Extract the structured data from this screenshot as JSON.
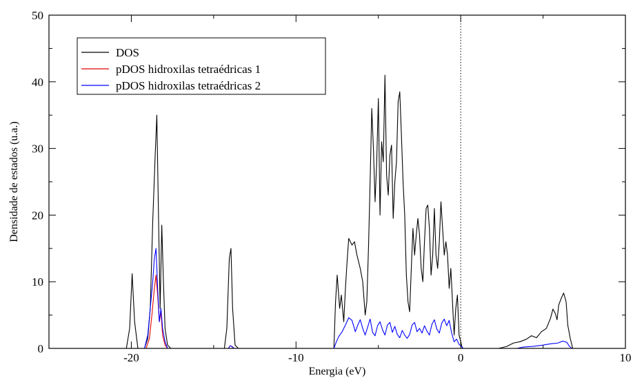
{
  "chart_data": {
    "type": "line",
    "title": "",
    "xlabel": "Energia (eV)",
    "ylabel": "Densidade de estados (u.a.)",
    "xlim": [
      -25,
      10
    ],
    "ylim": [
      0,
      50
    ],
    "xticks": [
      -20,
      -10,
      0,
      10
    ],
    "yticks": [
      0,
      10,
      20,
      30,
      40,
      50
    ],
    "xtick_labels": [
      "-20",
      "-10",
      "0",
      "10"
    ],
    "ytick_labels": [
      "0",
      "10",
      "20",
      "30",
      "40",
      "50"
    ],
    "grid": false,
    "fermi_level": 0,
    "legend_position": "top-left",
    "series": [
      {
        "name": "DOS",
        "color": "#000000",
        "points": [
          [
            -25,
            0
          ],
          [
            -20.3,
            0
          ],
          [
            -20.1,
            3
          ],
          [
            -19.95,
            11.2
          ],
          [
            -19.8,
            4
          ],
          [
            -19.6,
            0
          ],
          [
            -19.2,
            0
          ],
          [
            -19.0,
            1.5
          ],
          [
            -18.85,
            6
          ],
          [
            -18.7,
            19
          ],
          [
            -18.55,
            29
          ],
          [
            -18.45,
            35
          ],
          [
            -18.35,
            20
          ],
          [
            -18.25,
            6
          ],
          [
            -18.15,
            18.5
          ],
          [
            -18.05,
            10
          ],
          [
            -17.95,
            3
          ],
          [
            -17.8,
            0.5
          ],
          [
            -17.6,
            0
          ],
          [
            -14.35,
            0
          ],
          [
            -14.2,
            3
          ],
          [
            -14.05,
            13.5
          ],
          [
            -13.95,
            15
          ],
          [
            -13.85,
            6
          ],
          [
            -13.7,
            0.5
          ],
          [
            -13.5,
            0
          ],
          [
            -7.7,
            0
          ],
          [
            -7.6,
            7
          ],
          [
            -7.5,
            11
          ],
          [
            -7.35,
            6
          ],
          [
            -7.25,
            8
          ],
          [
            -7.1,
            4
          ],
          [
            -7.0,
            9
          ],
          [
            -6.9,
            13
          ],
          [
            -6.8,
            16.5
          ],
          [
            -6.6,
            15.5
          ],
          [
            -6.45,
            16
          ],
          [
            -6.3,
            14
          ],
          [
            -6.1,
            12
          ],
          [
            -5.95,
            10
          ],
          [
            -5.8,
            5
          ],
          [
            -5.7,
            7
          ],
          [
            -5.6,
            15
          ],
          [
            -5.5,
            25
          ],
          [
            -5.4,
            36
          ],
          [
            -5.3,
            30
          ],
          [
            -5.2,
            22
          ],
          [
            -5.1,
            28
          ],
          [
            -5.0,
            37.5
          ],
          [
            -4.9,
            20
          ],
          [
            -4.8,
            31
          ],
          [
            -4.7,
            28
          ],
          [
            -4.6,
            41
          ],
          [
            -4.5,
            26
          ],
          [
            -4.4,
            23
          ],
          [
            -4.3,
            29
          ],
          [
            -4.2,
            30.5
          ],
          [
            -4.1,
            19.5
          ],
          [
            -4.0,
            25
          ],
          [
            -3.9,
            28
          ],
          [
            -3.8,
            37
          ],
          [
            -3.7,
            38.5
          ],
          [
            -3.6,
            32
          ],
          [
            -3.5,
            25
          ],
          [
            -3.4,
            20
          ],
          [
            -3.3,
            11
          ],
          [
            -3.2,
            7
          ],
          [
            -3.1,
            5.5
          ],
          [
            -3.0,
            12
          ],
          [
            -2.9,
            18
          ],
          [
            -2.8,
            14
          ],
          [
            -2.7,
            17
          ],
          [
            -2.6,
            19.5
          ],
          [
            -2.5,
            17
          ],
          [
            -2.4,
            12
          ],
          [
            -2.3,
            10
          ],
          [
            -2.2,
            16
          ],
          [
            -2.1,
            21
          ],
          [
            -2.0,
            21.5
          ],
          [
            -1.9,
            18
          ],
          [
            -1.8,
            11
          ],
          [
            -1.7,
            14
          ],
          [
            -1.6,
            21
          ],
          [
            -1.5,
            14
          ],
          [
            -1.4,
            12
          ],
          [
            -1.3,
            16
          ],
          [
            -1.2,
            22
          ],
          [
            -1.1,
            18
          ],
          [
            -1.0,
            14
          ],
          [
            -0.9,
            16
          ],
          [
            -0.8,
            14
          ],
          [
            -0.7,
            9
          ],
          [
            -0.6,
            12
          ],
          [
            -0.5,
            7
          ],
          [
            -0.4,
            2
          ],
          [
            -0.3,
            6
          ],
          [
            -0.2,
            8
          ],
          [
            -0.1,
            2
          ],
          [
            0.0,
            1
          ],
          [
            0.1,
            0
          ],
          [
            2.3,
            0
          ],
          [
            2.8,
            0.3
          ],
          [
            3.2,
            0.8
          ],
          [
            3.6,
            1.0
          ],
          [
            4.0,
            1.4
          ],
          [
            4.3,
            1.9
          ],
          [
            4.6,
            1.6
          ],
          [
            4.9,
            2.5
          ],
          [
            5.2,
            3.0
          ],
          [
            5.45,
            4.5
          ],
          [
            5.6,
            5.9
          ],
          [
            5.75,
            5.2
          ],
          [
            5.85,
            4.3
          ],
          [
            5.95,
            6.5
          ],
          [
            6.1,
            7.5
          ],
          [
            6.25,
            8.3
          ],
          [
            6.4,
            7.0
          ],
          [
            6.5,
            3.5
          ],
          [
            6.65,
            1.5
          ],
          [
            6.8,
            0
          ],
          [
            10,
            0
          ]
        ]
      },
      {
        "name": "pDOS hidroxilas tetraédricas 1",
        "color": "#e00000",
        "points": [
          [
            -25,
            0
          ],
          [
            -19.1,
            0
          ],
          [
            -18.9,
            1.5
          ],
          [
            -18.75,
            5
          ],
          [
            -18.6,
            9
          ],
          [
            -18.5,
            11
          ],
          [
            -18.4,
            8
          ],
          [
            -18.3,
            4
          ],
          [
            -18.2,
            5.5
          ],
          [
            -18.1,
            2
          ],
          [
            -17.95,
            0.5
          ],
          [
            -17.8,
            0
          ],
          [
            -14.1,
            0
          ],
          [
            -14.0,
            0.4
          ],
          [
            -13.9,
            0.3
          ],
          [
            -13.8,
            0
          ],
          [
            10,
            0
          ]
        ]
      },
      {
        "name": "pDOS hidroxilas tetraédricas 2",
        "color": "#0000ff",
        "points": [
          [
            -25,
            0
          ],
          [
            -19.2,
            0
          ],
          [
            -19.0,
            2
          ],
          [
            -18.85,
            6
          ],
          [
            -18.7,
            10
          ],
          [
            -18.6,
            13.5
          ],
          [
            -18.5,
            15
          ],
          [
            -18.4,
            9
          ],
          [
            -18.3,
            4
          ],
          [
            -18.2,
            6
          ],
          [
            -18.1,
            3
          ],
          [
            -17.95,
            1
          ],
          [
            -17.8,
            0
          ],
          [
            -14.1,
            0
          ],
          [
            -14.0,
            0.4
          ],
          [
            -13.9,
            0.3
          ],
          [
            -13.75,
            0
          ],
          [
            -7.7,
            0
          ],
          [
            -7.55,
            1.0
          ],
          [
            -7.4,
            1.8
          ],
          [
            -7.2,
            2.5
          ],
          [
            -7.0,
            3.5
          ],
          [
            -6.8,
            4.6
          ],
          [
            -6.6,
            4.2
          ],
          [
            -6.4,
            2.5
          ],
          [
            -6.25,
            3.5
          ],
          [
            -6.1,
            4.3
          ],
          [
            -5.95,
            3.0
          ],
          [
            -5.8,
            2.0
          ],
          [
            -5.65,
            3.2
          ],
          [
            -5.5,
            4.4
          ],
          [
            -5.35,
            2.4
          ],
          [
            -5.2,
            1.9
          ],
          [
            -5.05,
            3.4
          ],
          [
            -4.9,
            4.0
          ],
          [
            -4.75,
            2.8
          ],
          [
            -4.6,
            2.0
          ],
          [
            -4.45,
            3.5
          ],
          [
            -4.3,
            3.9
          ],
          [
            -4.15,
            2.4
          ],
          [
            -4.0,
            3.3
          ],
          [
            -3.85,
            2.1
          ],
          [
            -3.7,
            1.6
          ],
          [
            -3.55,
            2.7
          ],
          [
            -3.4,
            2.0
          ],
          [
            -3.25,
            1.5
          ],
          [
            -3.1,
            2.1
          ],
          [
            -2.95,
            3.5
          ],
          [
            -2.8,
            3.9
          ],
          [
            -2.65,
            2.5
          ],
          [
            -2.5,
            3.0
          ],
          [
            -2.35,
            2.3
          ],
          [
            -2.2,
            3.4
          ],
          [
            -2.05,
            2.6
          ],
          [
            -1.9,
            2.0
          ],
          [
            -1.75,
            3.6
          ],
          [
            -1.6,
            4.3
          ],
          [
            -1.45,
            2.9
          ],
          [
            -1.3,
            2.3
          ],
          [
            -1.15,
            3.8
          ],
          [
            -1.0,
            4.4
          ],
          [
            -0.85,
            3.4
          ],
          [
            -0.7,
            4.2
          ],
          [
            -0.55,
            2.3
          ],
          [
            -0.4,
            1.0
          ],
          [
            -0.25,
            1.4
          ],
          [
            -0.1,
            0.6
          ],
          [
            0.05,
            0.3
          ],
          [
            0.15,
            0
          ],
          [
            3.4,
            0
          ],
          [
            3.8,
            0.2
          ],
          [
            4.4,
            0.3
          ],
          [
            5.0,
            0.5
          ],
          [
            5.5,
            0.7
          ],
          [
            5.9,
            0.8
          ],
          [
            6.2,
            1.1
          ],
          [
            6.45,
            0.9
          ],
          [
            6.6,
            0.3
          ],
          [
            6.75,
            0
          ],
          [
            10,
            0
          ]
        ]
      }
    ]
  }
}
